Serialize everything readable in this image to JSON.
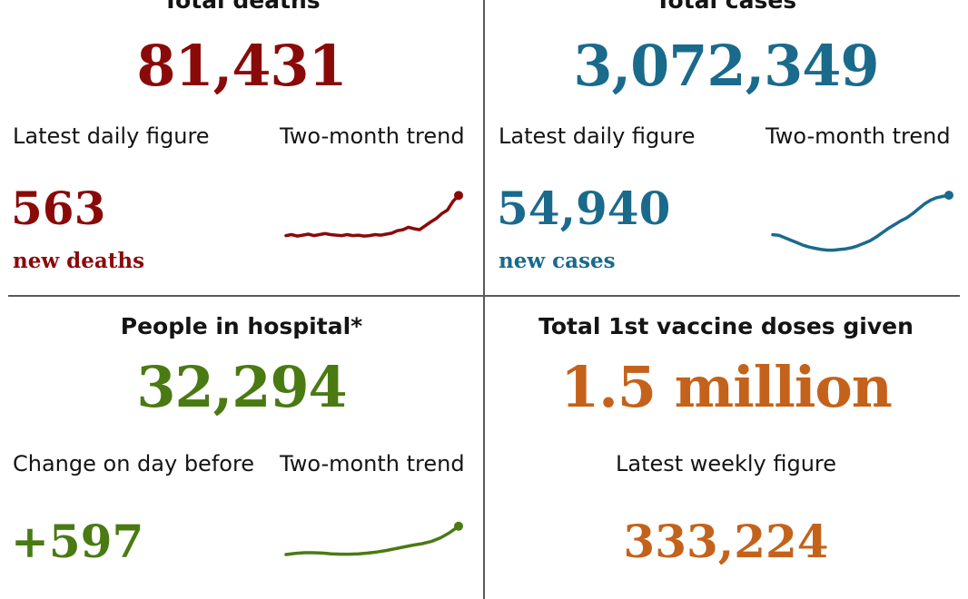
{
  "colors": {
    "deaths": "#8a0a0a",
    "cases": "#1a6a8c",
    "hospital": "#4a7a12",
    "vaccine": "#c4621b"
  },
  "deaths": {
    "title": "Total deaths",
    "total": "81,431",
    "daily_label": "Latest daily figure",
    "trend_label": "Two-month trend",
    "daily_value": "563",
    "daily_unit": "new deaths",
    "trend": [
      0.1,
      0.12,
      0.09,
      0.11,
      0.13,
      0.1,
      0.12,
      0.14,
      0.12,
      0.11,
      0.1,
      0.12,
      0.1,
      0.11,
      0.09,
      0.1,
      0.12,
      0.11,
      0.13,
      0.15,
      0.2,
      0.22,
      0.27,
      0.24,
      0.22,
      0.3,
      0.38,
      0.45,
      0.55,
      0.62,
      0.8,
      0.92
    ]
  },
  "cases": {
    "title": "Total cases",
    "total": "3,072,349",
    "daily_label": "Latest daily figure",
    "trend_label": "Two-month trend",
    "daily_value": "54,940",
    "daily_unit": "new cases",
    "trend": [
      0.3,
      0.29,
      0.25,
      0.21,
      0.17,
      0.13,
      0.1,
      0.08,
      0.06,
      0.05,
      0.05,
      0.06,
      0.07,
      0.09,
      0.12,
      0.16,
      0.2,
      0.26,
      0.33,
      0.4,
      0.46,
      0.52,
      0.57,
      0.64,
      0.72,
      0.8,
      0.86,
      0.9,
      0.92,
      0.94
    ]
  },
  "hospital": {
    "title": "People in hospital*",
    "total": "32,294",
    "change_label": "Change on day before",
    "trend_label": "Two-month trend",
    "change_value": "+597",
    "trend": [
      0.1,
      0.13,
      0.15,
      0.15,
      0.14,
      0.12,
      0.11,
      0.11,
      0.12,
      0.14,
      0.17,
      0.21,
      0.26,
      0.31,
      0.36,
      0.4,
      0.46,
      0.56,
      0.7,
      0.88
    ]
  },
  "vaccine": {
    "title": "Total 1st vaccine doses given",
    "total": "1.5 million",
    "weekly_label": "Latest weekly figure",
    "weekly_value": "333,224"
  }
}
